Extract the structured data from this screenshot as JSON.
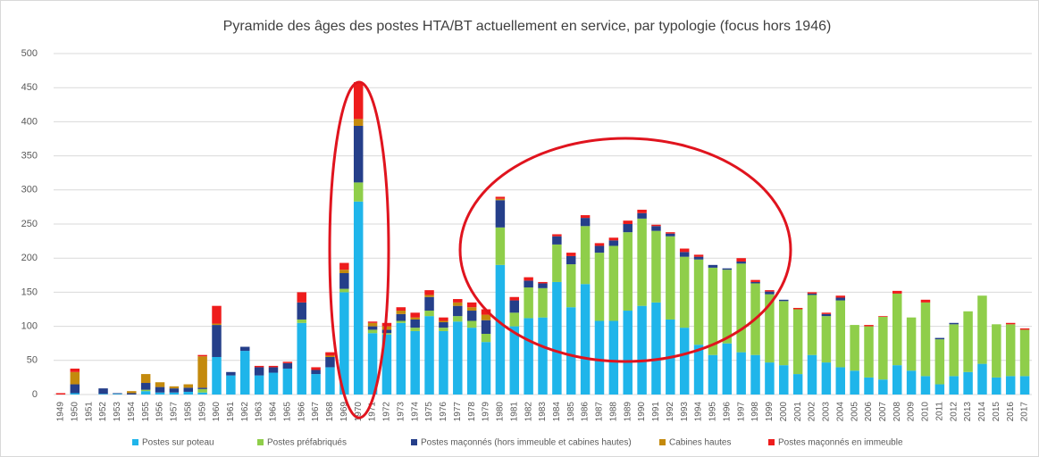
{
  "chart_data": {
    "type": "stacked_bar",
    "title": "Pyramide des âges des postes HTA/BT actuellement en service, par typologie (focus hors 1946)",
    "categories": [
      "1949",
      "1950",
      "1951",
      "1952",
      "1953",
      "1954",
      "1955",
      "1956",
      "1957",
      "1958",
      "1959",
      "1960",
      "1961",
      "1962",
      "1963",
      "1964",
      "1965",
      "1966",
      "1967",
      "1968",
      "1969",
      "1970",
      "1971",
      "1972",
      "1973",
      "1974",
      "1975",
      "1976",
      "1977",
      "1978",
      "1979",
      "1980",
      "1981",
      "1982",
      "1983",
      "1984",
      "1985",
      "1986",
      "1987",
      "1988",
      "1989",
      "1990",
      "1991",
      "1992",
      "1993",
      "1994",
      "1995",
      "1996",
      "1997",
      "1998",
      "1999",
      "2000",
      "2001",
      "2002",
      "2003",
      "2004",
      "2005",
      "2006",
      "2007",
      "2008",
      "2009",
      "2010",
      "2011",
      "2012",
      "2013",
      "2014",
      "2015",
      "2016",
      "2017"
    ],
    "series": [
      {
        "name": "Postes sur poteau",
        "color": "#1fb5ea",
        "values": [
          0,
          2,
          0,
          1,
          1,
          0,
          5,
          3,
          3,
          4,
          3,
          55,
          28,
          64,
          28,
          32,
          38,
          105,
          30,
          40,
          150,
          283,
          90,
          88,
          105,
          93,
          115,
          93,
          107,
          98,
          77,
          190,
          100,
          112,
          113,
          165,
          128,
          162,
          108,
          108,
          123,
          130,
          135,
          110,
          98,
          73,
          58,
          75,
          62,
          58,
          47,
          43,
          30,
          58,
          47,
          40,
          35,
          25,
          22,
          43,
          35,
          27,
          15,
          27,
          33,
          45,
          25,
          27,
          27
        ]
      },
      {
        "name": "Postes préfabriqués",
        "color": "#8fce4a",
        "values": [
          0,
          0,
          0,
          0,
          0,
          0,
          2,
          0,
          0,
          0,
          5,
          0,
          0,
          0,
          0,
          0,
          0,
          5,
          0,
          0,
          5,
          28,
          5,
          2,
          3,
          5,
          8,
          5,
          8,
          10,
          12,
          55,
          20,
          45,
          43,
          55,
          63,
          85,
          100,
          110,
          115,
          128,
          105,
          122,
          104,
          125,
          128,
          108,
          130,
          105,
          100,
          94,
          95,
          88,
          68,
          98,
          67,
          75,
          92,
          105,
          78,
          108,
          66,
          76,
          89,
          100,
          78,
          76,
          68
        ]
      },
      {
        "name": "Postes maçonnés (hors immeuble et cabines hautes)",
        "color": "#253f8a",
        "values": [
          0,
          13,
          0,
          8,
          1,
          2,
          10,
          8,
          6,
          6,
          2,
          47,
          5,
          6,
          12,
          8,
          8,
          25,
          6,
          15,
          23,
          83,
          5,
          5,
          10,
          12,
          20,
          8,
          15,
          15,
          20,
          40,
          18,
          10,
          7,
          12,
          12,
          12,
          10,
          8,
          12,
          8,
          7,
          4,
          7,
          4,
          4,
          2,
          3,
          2,
          4,
          2,
          0,
          2,
          3,
          4,
          0,
          0,
          0,
          0,
          0,
          0,
          2,
          2,
          0,
          0,
          0,
          0,
          0
        ]
      },
      {
        "name": "Cabines hautes",
        "color": "#c48a0d",
        "values": [
          0,
          18,
          0,
          0,
          0,
          3,
          13,
          7,
          3,
          5,
          46,
          2,
          0,
          0,
          0,
          0,
          0,
          0,
          0,
          2,
          5,
          10,
          5,
          5,
          5,
          3,
          3,
          2,
          5,
          5,
          8,
          2,
          0,
          0,
          0,
          0,
          0,
          0,
          0,
          0,
          0,
          0,
          0,
          0,
          0,
          0,
          0,
          0,
          0,
          0,
          0,
          0,
          0,
          0,
          0,
          0,
          0,
          0,
          0,
          0,
          0,
          0,
          0,
          0,
          0,
          0,
          0,
          0,
          0
        ]
      },
      {
        "name": "Postes maçonnés en immeuble",
        "color": "#ee1c1c",
        "values": [
          2,
          5,
          0,
          0,
          0,
          0,
          0,
          0,
          0,
          0,
          2,
          26,
          0,
          0,
          2,
          2,
          2,
          15,
          4,
          5,
          10,
          54,
          2,
          5,
          5,
          7,
          7,
          5,
          5,
          7,
          8,
          3,
          5,
          5,
          2,
          3,
          5,
          4,
          4,
          4,
          5,
          5,
          2,
          2,
          5,
          3,
          0,
          0,
          5,
          3,
          2,
          0,
          2,
          2,
          2,
          3,
          0,
          2,
          1,
          4,
          0,
          4,
          0,
          0,
          0,
          0,
          0,
          2,
          2
        ]
      }
    ],
    "ylim": [
      0,
      500
    ],
    "yticks": [
      0,
      50,
      100,
      150,
      200,
      250,
      300,
      350,
      400,
      450,
      500
    ],
    "grid": true
  }
}
